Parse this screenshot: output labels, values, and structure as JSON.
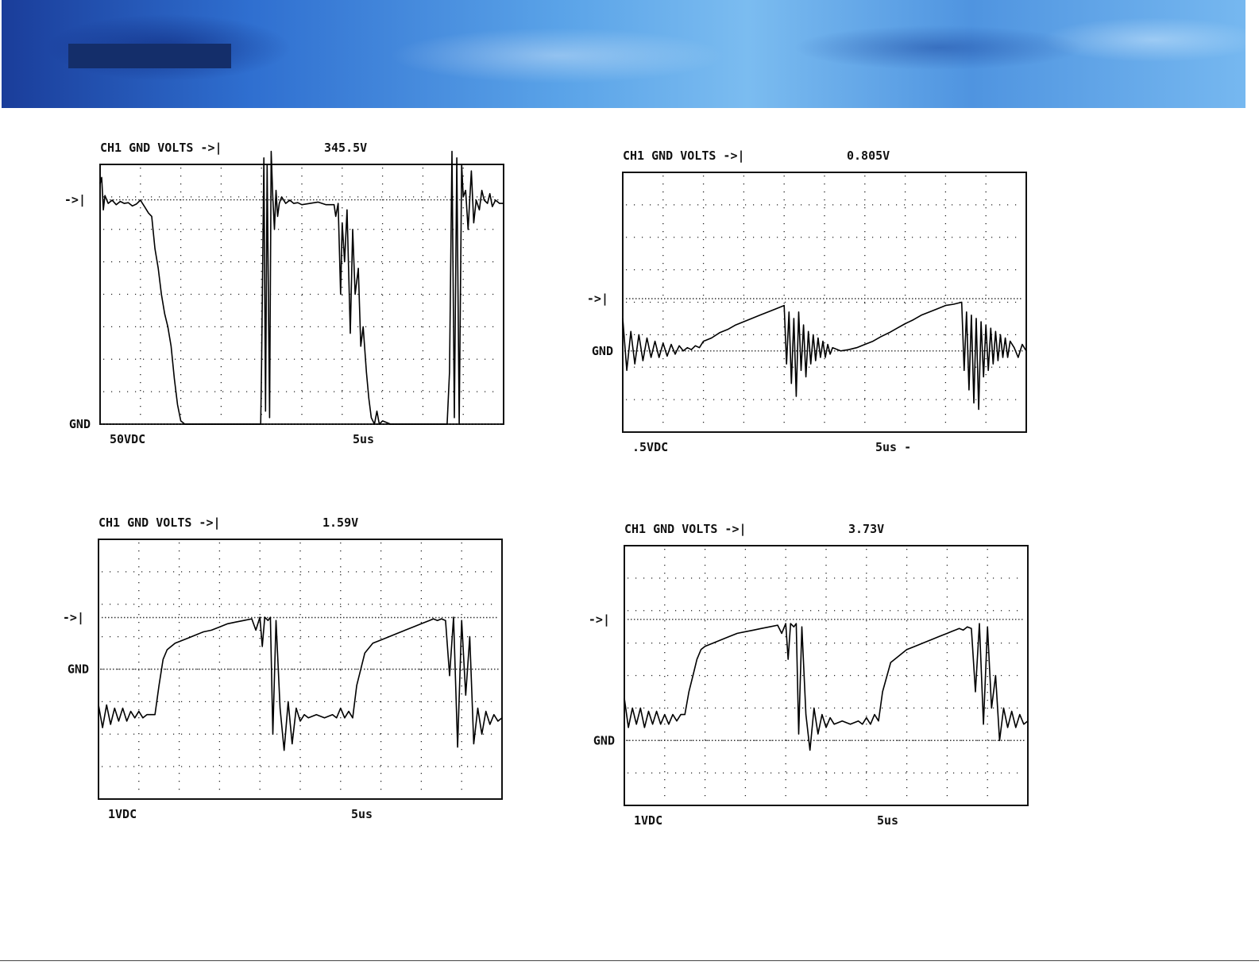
{
  "chart_data": [
    {
      "type": "line",
      "title": "CH1 GND VOLTS ->|",
      "reading": "345.5V",
      "ref_marker": "->|",
      "gnd_label": "GND",
      "volts_per_div": "50VDC",
      "time_per_div": "5us",
      "xlim": [
        0,
        50
      ],
      "ylim": [
        0,
        400
      ],
      "ref_level": 345.5,
      "gnd_level": 0,
      "series": [
        {
          "x": [
            0,
            0.2,
            0.4,
            0.6,
            1,
            1.5,
            2,
            2.5,
            3,
            3.5,
            4,
            4.5,
            5,
            5.5,
            6,
            6.4,
            6.8,
            7.2,
            7.6,
            8,
            8.4,
            8.8,
            9.2,
            9.6,
            10,
            10.5,
            11,
            12,
            14,
            16,
            18,
            19.9,
            20,
            20.3,
            20.5,
            20.7,
            21,
            21.2,
            21.4,
            21.6,
            21.8,
            22,
            22.2,
            22.5,
            23,
            23.5,
            24,
            24.5,
            25,
            26,
            27,
            28,
            29,
            29.2,
            29.5,
            29.8,
            30,
            30.3,
            30.6,
            31,
            31.3,
            31.6,
            32,
            32.3,
            32.6,
            33,
            33.3,
            33.6,
            34,
            34.3,
            34.6,
            35,
            36,
            38,
            40,
            42,
            43,
            43.3,
            43.6,
            43.9,
            44.2,
            44.5,
            44.8,
            45,
            45.3,
            45.6,
            46,
            46.3,
            46.6,
            47,
            47.3,
            47.6,
            48,
            48.3,
            48.6,
            49,
            49.5,
            50
          ],
          "values": [
            370,
            380,
            330,
            352,
            340,
            345,
            338,
            343,
            340,
            341,
            336,
            339,
            345,
            335,
            325,
            320,
            270,
            240,
            200,
            170,
            150,
            120,
            70,
            30,
            5,
            0,
            0,
            0,
            0,
            0,
            0,
            0,
            80,
            410,
            20,
            400,
            10,
            420,
            350,
            300,
            360,
            320,
            340,
            350,
            340,
            345,
            340,
            341,
            338,
            340,
            342,
            338,
            338,
            320,
            340,
            200,
            310,
            250,
            330,
            140,
            300,
            200,
            240,
            120,
            150,
            80,
            40,
            10,
            0,
            20,
            0,
            5,
            0,
            0,
            0,
            0,
            0,
            80,
            420,
            10,
            410,
            0,
            400,
            350,
            360,
            300,
            390,
            310,
            345,
            330,
            360,
            345,
            340,
            355,
            335,
            345,
            340,
            340
          ]
        }
      ]
    },
    {
      "type": "line",
      "title": "CH1 GND VOLTS ->|",
      "reading": "0.805V",
      "ref_marker": "->|",
      "gnd_label": "GND",
      "volts_per_div": ".5VDC",
      "time_per_div": "5us -",
      "xlim": [
        0,
        50
      ],
      "ylim": [
        -1.25,
        2.75
      ],
      "ref_level": 0.805,
      "gnd_level": 0,
      "series": [
        {
          "x": [
            0,
            0.5,
            1,
            1.5,
            2,
            2.5,
            3,
            3.5,
            4,
            4.5,
            5,
            5.5,
            6,
            6.5,
            7,
            7.5,
            8,
            8.5,
            9,
            9.5,
            10,
            11,
            12,
            13,
            14,
            15,
            16,
            17,
            18,
            19,
            20,
            20.3,
            20.6,
            20.9,
            21.2,
            21.5,
            21.8,
            22.1,
            22.4,
            22.7,
            23,
            23.3,
            23.6,
            23.9,
            24.2,
            24.5,
            24.8,
            25.1,
            25.4,
            25.7,
            26,
            27,
            28,
            29,
            30,
            31,
            32,
            33,
            34,
            35,
            36,
            37,
            38,
            39,
            40,
            41,
            42,
            42.3,
            42.6,
            42.9,
            43.2,
            43.5,
            43.8,
            44.1,
            44.4,
            44.7,
            45,
            45.3,
            45.6,
            45.9,
            46.2,
            46.5,
            46.8,
            47.1,
            47.4,
            47.7,
            48,
            48.5,
            49,
            49.5,
            50
          ],
          "values": [
            0.5,
            -0.3,
            0.3,
            -0.2,
            0.25,
            -0.15,
            0.2,
            -0.1,
            0.15,
            -0.1,
            0.12,
            -0.08,
            0.1,
            -0.05,
            0.08,
            0,
            0.05,
            0.02,
            0.08,
            0.05,
            0.15,
            0.2,
            0.28,
            0.33,
            0.4,
            0.45,
            0.5,
            0.55,
            0.6,
            0.65,
            0.7,
            -0.2,
            0.6,
            -0.5,
            0.5,
            -0.7,
            0.6,
            -0.3,
            0.4,
            -0.4,
            0.3,
            -0.2,
            0.25,
            -0.15,
            0.2,
            -0.1,
            0.15,
            -0.1,
            0.1,
            -0.05,
            0.05,
            0,
            0.02,
            0.05,
            0.1,
            0.15,
            0.22,
            0.28,
            0.35,
            0.42,
            0.48,
            0.55,
            0.6,
            0.65,
            0.7,
            0.72,
            0.75,
            -0.3,
            0.6,
            -0.6,
            0.55,
            -0.8,
            0.5,
            -0.9,
            0.45,
            -0.4,
            0.4,
            -0.3,
            0.35,
            -0.2,
            0.3,
            -0.15,
            0.25,
            -0.1,
            0.2,
            -0.1,
            0.15,
            0.05,
            -0.1,
            0.1,
            0
          ]
        }
      ]
    },
    {
      "type": "line",
      "title": "CH1 GND VOLTS ->|",
      "reading": "1.59V",
      "ref_marker": "->|",
      "gnd_label": "GND",
      "volts_per_div": "1VDC",
      "time_per_div": "5us",
      "xlim": [
        0,
        50
      ],
      "ylim": [
        -4,
        4
      ],
      "ref_level": 1.59,
      "gnd_level": 0,
      "series": [
        {
          "x": [
            0,
            0.5,
            1,
            1.5,
            2,
            2.5,
            3,
            3.5,
            4,
            4.5,
            5,
            5.5,
            6,
            6.5,
            7,
            7.5,
            8,
            8.5,
            9,
            9.5,
            10,
            11,
            12,
            13,
            14,
            15,
            16,
            17,
            18,
            19,
            19.5,
            20,
            20.3,
            20.6,
            21,
            21.3,
            21.6,
            22,
            22.5,
            23,
            23.5,
            24,
            24.5,
            25,
            25.5,
            26,
            27,
            28,
            29,
            29.5,
            30,
            30.5,
            31,
            31.5,
            32,
            33,
            34,
            35,
            36,
            37,
            38,
            39,
            40,
            40.5,
            41,
            41.5,
            42,
            42.5,
            43,
            43.5,
            44,
            44.5,
            45,
            45.5,
            46,
            46.5,
            47,
            47.5,
            48,
            48.5,
            49,
            49.5,
            50
          ],
          "values": [
            -1.1,
            -1.8,
            -1.1,
            -1.7,
            -1.2,
            -1.6,
            -1.2,
            -1.6,
            -1.3,
            -1.5,
            -1.3,
            -1.5,
            -1.4,
            -1.4,
            -1.4,
            -0.5,
            0.3,
            0.6,
            0.7,
            0.8,
            0.85,
            0.95,
            1.05,
            1.15,
            1.2,
            1.3,
            1.4,
            1.45,
            1.5,
            1.55,
            1.2,
            1.6,
            0.7,
            1.6,
            1.5,
            1.6,
            -2.0,
            1.5,
            -1.2,
            -2.5,
            -1.0,
            -2.3,
            -1.2,
            -1.6,
            -1.4,
            -1.5,
            -1.4,
            -1.5,
            -1.4,
            -1.5,
            -1.2,
            -1.5,
            -1.3,
            -1.5,
            -0.5,
            0.5,
            0.8,
            0.9,
            1.0,
            1.1,
            1.2,
            1.3,
            1.4,
            1.45,
            1.5,
            1.55,
            1.5,
            1.55,
            1.5,
            -0.2,
            1.6,
            -2.4,
            1.5,
            -0.8,
            1.0,
            -2.3,
            -1.2,
            -2.0,
            -1.3,
            -1.7,
            -1.4,
            -1.6,
            -1.5
          ]
        }
      ]
    },
    {
      "type": "line",
      "title": "CH1 GND VOLTS ->|",
      "reading": "3.73V",
      "ref_marker": "->|",
      "gnd_label": "GND",
      "volts_per_div": "1VDC",
      "time_per_div": "5us",
      "xlim": [
        0,
        50
      ],
      "ylim": [
        -2,
        6
      ],
      "ref_level": 3.73,
      "gnd_level": 0,
      "series": [
        {
          "x": [
            0,
            0.5,
            1,
            1.5,
            2,
            2.5,
            3,
            3.5,
            4,
            4.5,
            5,
            5.5,
            6,
            6.5,
            7,
            7.5,
            8,
            8.5,
            9,
            9.5,
            10,
            11,
            12,
            13,
            14,
            15,
            16,
            17,
            18,
            19,
            19.5,
            20,
            20.3,
            20.6,
            21,
            21.3,
            21.6,
            22,
            22.5,
            23,
            23.5,
            24,
            24.5,
            25,
            25.5,
            26,
            27,
            28,
            29,
            29.5,
            30,
            30.5,
            31,
            31.5,
            32,
            33,
            34,
            35,
            36,
            37,
            38,
            39,
            40,
            40.5,
            41,
            41.5,
            42,
            42.5,
            43,
            43.5,
            44,
            44.5,
            45,
            45.5,
            46,
            46.5,
            47,
            47.5,
            48,
            48.5,
            49,
            49.5,
            50
          ],
          "values": [
            1.3,
            0.4,
            1.0,
            0.5,
            1.0,
            0.4,
            0.9,
            0.5,
            0.9,
            0.5,
            0.8,
            0.5,
            0.8,
            0.6,
            0.8,
            0.8,
            1.5,
            2.0,
            2.5,
            2.8,
            2.9,
            3.0,
            3.1,
            3.2,
            3.3,
            3.35,
            3.4,
            3.45,
            3.5,
            3.55,
            3.3,
            3.6,
            2.5,
            3.6,
            3.5,
            3.6,
            0.2,
            3.5,
            0.8,
            -0.3,
            1.0,
            0.2,
            0.8,
            0.4,
            0.7,
            0.5,
            0.6,
            0.5,
            0.6,
            0.5,
            0.7,
            0.5,
            0.8,
            0.6,
            1.5,
            2.4,
            2.6,
            2.8,
            2.9,
            3.0,
            3.1,
            3.2,
            3.3,
            3.35,
            3.4,
            3.45,
            3.4,
            3.5,
            3.45,
            1.5,
            3.6,
            0.5,
            3.5,
            1.0,
            2.0,
            0.0,
            1.0,
            0.4,
            0.9,
            0.4,
            0.8,
            0.5,
            0.6
          ]
        }
      ]
    }
  ]
}
